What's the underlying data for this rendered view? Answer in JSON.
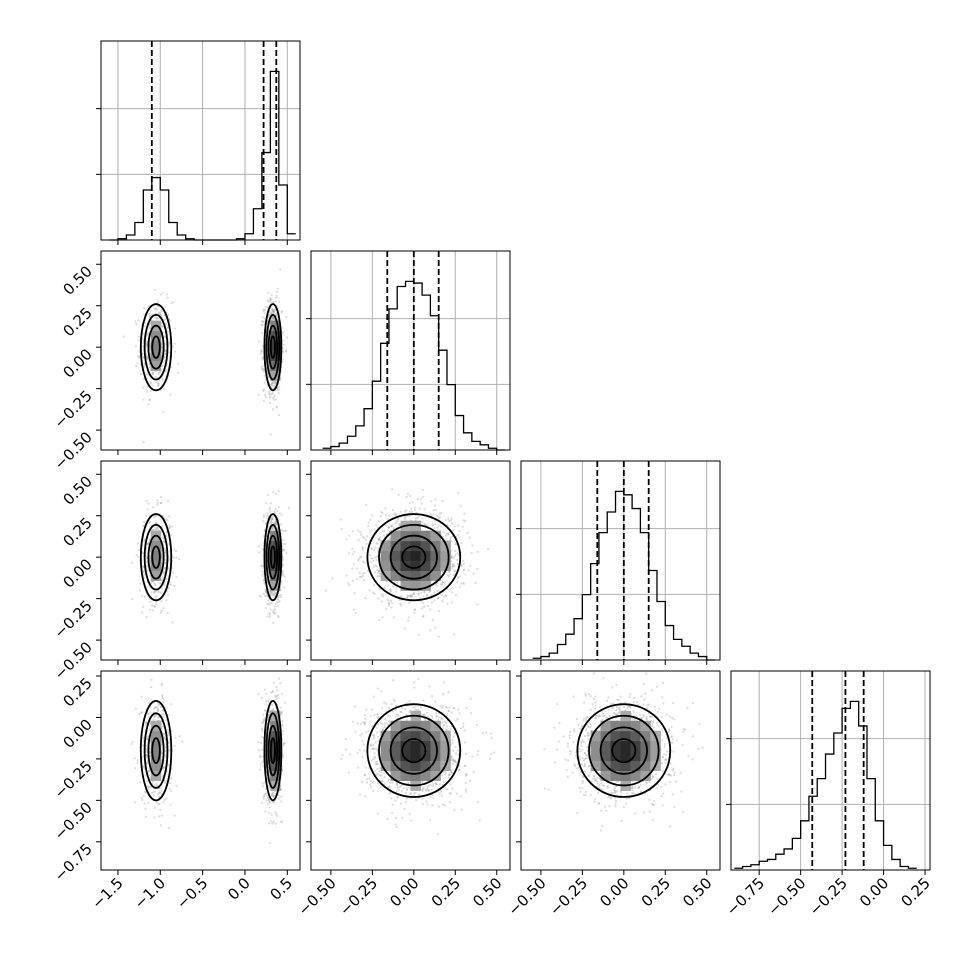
{
  "chart_data": {
    "type": "corner",
    "n_params": 4,
    "params": [
      {
        "range": [
          -1.7,
          0.65
        ],
        "ticks": [
          -1.5,
          -1.0,
          -0.5,
          0.0,
          0.5
        ],
        "tick_labels": [
          "−1.5",
          "−1.0",
          "−0.5",
          "0.0",
          "0.5"
        ],
        "hist": {
          "edges": [
            -1.6,
            -1.5,
            -1.4,
            -1.3,
            -1.2,
            -1.1,
            -1.0,
            -0.9,
            -0.8,
            -0.7,
            -0.6,
            -0.5,
            -0.4,
            -0.3,
            -0.2,
            -0.1,
            0.0,
            0.1,
            0.2,
            0.3,
            0.4,
            0.5,
            0.6
          ],
          "counts": [
            0,
            2,
            8,
            28,
            80,
            100,
            80,
            28,
            8,
            2,
            0,
            0,
            0,
            0,
            0,
            2,
            10,
            50,
            140,
            270,
            88,
            10
          ]
        },
        "quantiles": [
          -1.1,
          0.22,
          0.37
        ]
      },
      {
        "range": [
          -0.62,
          0.58
        ],
        "ticks": [
          -0.5,
          -0.25,
          0.0,
          0.25,
          0.5
        ],
        "tick_labels": [
          "−0.50",
          "−0.25",
          "0.00",
          "0.25",
          "0.50"
        ],
        "hist": {
          "edges": [
            -0.55,
            -0.5,
            -0.45,
            -0.4,
            -0.35,
            -0.3,
            -0.25,
            -0.2,
            -0.15,
            -0.1,
            -0.05,
            0.0,
            0.05,
            0.1,
            0.15,
            0.2,
            0.25,
            0.3,
            0.35,
            0.4,
            0.45,
            0.5,
            0.55
          ],
          "counts": [
            1,
            2,
            4,
            8,
            14,
            24,
            40,
            62,
            82,
            95,
            98,
            97,
            90,
            78,
            58,
            38,
            20,
            10,
            5,
            3,
            1,
            0
          ]
        },
        "quantiles": [
          -0.16,
          0.0,
          0.15
        ]
      },
      {
        "range": [
          -0.62,
          0.58
        ],
        "ticks": [
          -0.5,
          -0.25,
          0.0,
          0.25,
          0.5
        ],
        "tick_labels": [
          "−0.50",
          "−0.25",
          "0.00",
          "0.25",
          "0.50"
        ],
        "hist": {
          "edges": [
            -0.55,
            -0.5,
            -0.45,
            -0.4,
            -0.35,
            -0.3,
            -0.25,
            -0.2,
            -0.15,
            -0.1,
            -0.05,
            0.0,
            0.05,
            0.1,
            0.15,
            0.2,
            0.25,
            0.3,
            0.35,
            0.4,
            0.45,
            0.5,
            0.55
          ],
          "counts": [
            1,
            2,
            4,
            9,
            15,
            24,
            38,
            56,
            74,
            86,
            98,
            96,
            88,
            74,
            52,
            34,
            20,
            12,
            8,
            4,
            2,
            0
          ]
        },
        "quantiles": [
          -0.16,
          0.0,
          0.15
        ]
      },
      {
        "range": [
          -0.92,
          0.28
        ],
        "ticks": [
          -0.75,
          -0.5,
          -0.25,
          0.0,
          0.25
        ],
        "tick_labels": [
          "−0.75",
          "−0.50",
          "−0.25",
          "0.00",
          "0.25"
        ],
        "hist": {
          "edges": [
            -0.9,
            -0.85,
            -0.8,
            -0.75,
            -0.7,
            -0.65,
            -0.6,
            -0.55,
            -0.5,
            -0.45,
            -0.4,
            -0.35,
            -0.3,
            -0.25,
            -0.2,
            -0.15,
            -0.1,
            -0.05,
            0.0,
            0.05,
            0.1,
            0.15,
            0.2
          ],
          "counts": [
            1,
            2,
            3,
            5,
            6,
            9,
            12,
            18,
            28,
            42,
            52,
            66,
            78,
            92,
            96,
            82,
            52,
            28,
            14,
            6,
            2,
            1
          ]
        },
        "quantiles": [
          -0.43,
          -0.23,
          -0.12
        ]
      }
    ],
    "pairs": [
      {
        "row": 1,
        "col": 0,
        "modes": [
          {
            "x": -1.05,
            "y": 0.0,
            "sx": 0.09,
            "sy": 0.13,
            "w": 0.35
          },
          {
            "x": 0.33,
            "y": 0.0,
            "sx": 0.05,
            "sy": 0.13,
            "w": 0.65
          }
        ]
      },
      {
        "row": 2,
        "col": 0,
        "modes": [
          {
            "x": -1.05,
            "y": 0.0,
            "sx": 0.09,
            "sy": 0.13,
            "w": 0.35
          },
          {
            "x": 0.33,
            "y": 0.0,
            "sx": 0.05,
            "sy": 0.13,
            "w": 0.65
          }
        ]
      },
      {
        "row": 2,
        "col": 1,
        "modes": [
          {
            "x": 0.0,
            "y": 0.0,
            "sx": 0.14,
            "sy": 0.13,
            "w": 1.0
          }
        ]
      },
      {
        "row": 3,
        "col": 0,
        "modes": [
          {
            "x": -1.05,
            "y": -0.2,
            "sx": 0.09,
            "sy": 0.15,
            "w": 0.35
          },
          {
            "x": 0.33,
            "y": -0.2,
            "sx": 0.05,
            "sy": 0.15,
            "w": 0.65
          }
        ]
      },
      {
        "row": 3,
        "col": 1,
        "modes": [
          {
            "x": 0.0,
            "y": -0.2,
            "sx": 0.14,
            "sy": 0.14,
            "w": 1.0
          }
        ]
      },
      {
        "row": 3,
        "col": 2,
        "modes": [
          {
            "x": 0.0,
            "y": -0.2,
            "sx": 0.14,
            "sy": 0.14,
            "w": 1.0
          }
        ]
      }
    ],
    "contour_levels_sigma": [
      0.5,
      1.0,
      1.5,
      2.0
    ],
    "grid": true,
    "title": "",
    "xlabel": "",
    "ylabel": ""
  }
}
